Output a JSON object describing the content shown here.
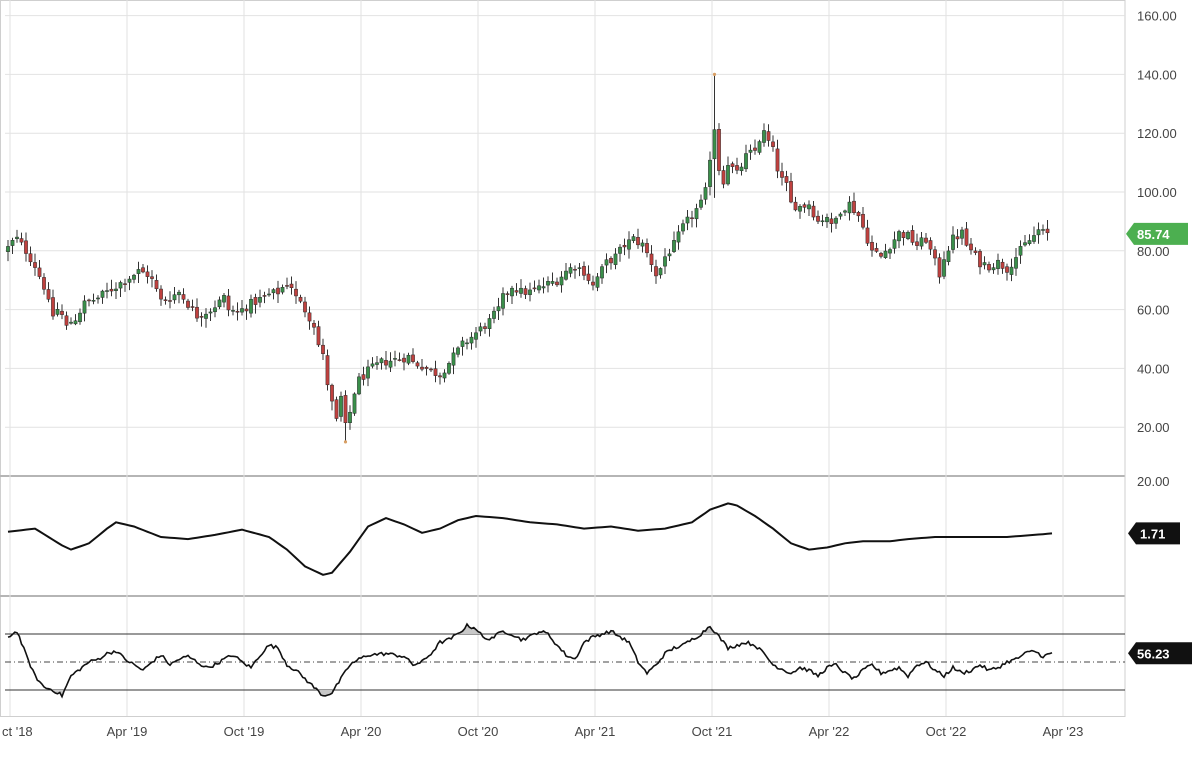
{
  "chart_data": [
    {
      "type": "candlestick",
      "panel": "price",
      "y_ticks": [
        "20.00",
        "40.00",
        "60.00",
        "80.00",
        "100.00",
        "120.00",
        "140.00",
        "160.00"
      ],
      "ylim": [
        0,
        163
      ],
      "x_ticks": [
        "ct '18",
        "Apr '19",
        "Oct '19",
        "Apr '20",
        "Oct '20",
        "Apr '21",
        "Oct '21",
        "Apr '22",
        "Oct '22",
        "Apr '23"
      ],
      "last_value_label": "85.74",
      "colors": {
        "up": "#3a8f4a",
        "down": "#c0413f",
        "badge": "#4caf50"
      },
      "grid": true,
      "x_axis": "weekly time, Oct 2018 – Aug 2023 (index 0 = first visible week)",
      "x_tick_week": [
        0,
        26,
        52,
        78,
        104,
        130,
        156,
        182,
        208,
        234
      ],
      "close_key_points": [
        [
          0,
          81
        ],
        [
          1,
          83
        ],
        [
          2,
          84
        ],
        [
          4,
          80
        ],
        [
          6,
          75
        ],
        [
          8,
          68
        ],
        [
          9,
          62
        ],
        [
          10,
          58
        ],
        [
          11,
          60
        ],
        [
          12,
          58
        ],
        [
          13,
          54
        ],
        [
          14,
          56
        ],
        [
          15,
          57
        ],
        [
          17,
          62
        ],
        [
          20,
          64
        ],
        [
          24,
          68
        ],
        [
          27,
          71
        ],
        [
          29,
          73
        ],
        [
          31,
          72
        ],
        [
          32,
          70
        ],
        [
          34,
          63
        ],
        [
          36,
          64
        ],
        [
          38,
          66
        ],
        [
          40,
          62
        ],
        [
          42,
          58
        ],
        [
          45,
          60
        ],
        [
          48,
          64
        ],
        [
          49,
          60
        ],
        [
          51,
          59
        ],
        [
          54,
          62
        ],
        [
          58,
          65
        ],
        [
          60,
          66
        ],
        [
          62,
          69
        ],
        [
          63,
          68
        ],
        [
          64,
          64
        ],
        [
          66,
          60
        ],
        [
          68,
          55
        ],
        [
          69,
          48
        ],
        [
          70,
          44
        ],
        [
          71,
          35
        ],
        [
          72,
          28
        ],
        [
          73,
          22
        ],
        [
          74,
          30
        ],
        [
          75,
          20
        ],
        [
          76,
          25
        ],
        [
          77,
          32
        ],
        [
          78,
          36
        ],
        [
          80,
          39
        ],
        [
          83,
          42
        ],
        [
          86,
          43
        ],
        [
          89,
          44
        ],
        [
          90,
          42
        ],
        [
          92,
          41
        ],
        [
          94,
          39
        ],
        [
          96,
          38
        ],
        [
          97,
          40
        ],
        [
          99,
          44
        ],
        [
          101,
          48
        ],
        [
          104,
          52
        ],
        [
          107,
          56
        ],
        [
          109,
          60
        ],
        [
          110,
          64
        ],
        [
          112,
          68
        ],
        [
          114,
          66
        ],
        [
          116,
          66
        ],
        [
          119,
          68
        ],
        [
          122,
          70
        ],
        [
          124,
          73
        ],
        [
          126,
          75
        ],
        [
          128,
          73
        ],
        [
          130,
          68
        ],
        [
          131,
          71
        ],
        [
          133,
          76
        ],
        [
          135,
          78
        ],
        [
          137,
          82
        ],
        [
          139,
          84
        ],
        [
          141,
          82
        ],
        [
          143,
          76
        ],
        [
          144,
          72
        ],
        [
          145,
          74
        ],
        [
          146,
          78
        ],
        [
          148,
          82
        ],
        [
          150,
          88
        ],
        [
          152,
          92
        ],
        [
          154,
          96
        ],
        [
          155,
          100
        ],
        [
          156,
          112
        ],
        [
          157,
          122
        ],
        [
          158,
          108
        ],
        [
          159,
          104
        ],
        [
          160,
          110
        ],
        [
          162,
          106
        ],
        [
          164,
          112
        ],
        [
          166,
          114
        ],
        [
          167,
          118
        ],
        [
          168,
          120
        ],
        [
          170,
          114
        ],
        [
          171,
          108
        ],
        [
          172,
          104
        ],
        [
          173,
          102
        ],
        [
          174,
          96
        ],
        [
          176,
          95
        ],
        [
          178,
          96
        ],
        [
          180,
          90
        ],
        [
          182,
          92
        ],
        [
          183,
          88
        ],
        [
          185,
          94
        ],
        [
          187,
          96
        ],
        [
          189,
          92
        ],
        [
          191,
          84
        ],
        [
          192,
          80
        ],
        [
          194,
          78
        ],
        [
          196,
          82
        ],
        [
          198,
          86
        ],
        [
          200,
          85
        ],
        [
          202,
          82
        ],
        [
          204,
          84
        ],
        [
          206,
          76
        ],
        [
          207,
          72
        ],
        [
          208,
          78
        ],
        [
          210,
          84
        ],
        [
          212,
          86
        ],
        [
          213,
          82
        ],
        [
          214,
          80
        ],
        [
          216,
          76
        ],
        [
          218,
          75
        ],
        [
          220,
          76
        ],
        [
          222,
          74
        ],
        [
          224,
          78
        ],
        [
          226,
          82
        ],
        [
          228,
          85
        ],
        [
          229,
          87
        ],
        [
          230,
          86
        ],
        [
          231,
          85.74
        ]
      ],
      "spikes": [
        {
          "week": 157,
          "high": 140,
          "low": 98
        },
        {
          "week": 75,
          "high": 30,
          "low": 15
        }
      ]
    },
    {
      "type": "line",
      "panel": "oscillator-1",
      "y_tick": "20.00",
      "last_value_label": "1.71",
      "color": "#111111",
      "key_points": [
        [
          0,
          2.5
        ],
        [
          6,
          4
        ],
        [
          12,
          -4
        ],
        [
          14,
          -6
        ],
        [
          18,
          -3
        ],
        [
          22,
          4
        ],
        [
          24,
          7
        ],
        [
          28,
          5
        ],
        [
          34,
          0
        ],
        [
          40,
          -1
        ],
        [
          46,
          1
        ],
        [
          52,
          3.5
        ],
        [
          58,
          0
        ],
        [
          62,
          -6
        ],
        [
          66,
          -14
        ],
        [
          70,
          -18
        ],
        [
          72,
          -17
        ],
        [
          76,
          -7
        ],
        [
          80,
          5
        ],
        [
          84,
          9
        ],
        [
          88,
          6
        ],
        [
          92,
          2
        ],
        [
          96,
          4
        ],
        [
          100,
          8
        ],
        [
          104,
          10
        ],
        [
          110,
          9
        ],
        [
          116,
          7
        ],
        [
          122,
          6
        ],
        [
          128,
          4
        ],
        [
          134,
          5
        ],
        [
          140,
          3
        ],
        [
          146,
          4
        ],
        [
          152,
          7
        ],
        [
          156,
          13
        ],
        [
          160,
          16
        ],
        [
          162,
          15
        ],
        [
          166,
          10
        ],
        [
          170,
          4
        ],
        [
          174,
          -3
        ],
        [
          178,
          -6
        ],
        [
          182,
          -5
        ],
        [
          186,
          -3
        ],
        [
          190,
          -2
        ],
        [
          196,
          -2
        ],
        [
          200,
          -1
        ],
        [
          206,
          0
        ],
        [
          212,
          0
        ],
        [
          218,
          0
        ],
        [
          222,
          0
        ],
        [
          228,
          1
        ],
        [
          232,
          1.71
        ]
      ]
    },
    {
      "type": "line",
      "panel": "oscillator-2",
      "last_value_label": "56.23",
      "upper_band": 70,
      "lower_band": 30,
      "mid_line": 50,
      "color": "#111111",
      "fill_color": "#c8c8c8",
      "key_points": [
        [
          0,
          68
        ],
        [
          2,
          72
        ],
        [
          4,
          55
        ],
        [
          6,
          40
        ],
        [
          8,
          32
        ],
        [
          10,
          30
        ],
        [
          12,
          26
        ],
        [
          14,
          40
        ],
        [
          16,
          45
        ],
        [
          18,
          50
        ],
        [
          20,
          52
        ],
        [
          22,
          56
        ],
        [
          24,
          58
        ],
        [
          26,
          52
        ],
        [
          28,
          48
        ],
        [
          30,
          44
        ],
        [
          32,
          50
        ],
        [
          34,
          55
        ],
        [
          36,
          48
        ],
        [
          38,
          52
        ],
        [
          40,
          54
        ],
        [
          42,
          50
        ],
        [
          44,
          46
        ],
        [
          46,
          48
        ],
        [
          48,
          52
        ],
        [
          50,
          55
        ],
        [
          52,
          50
        ],
        [
          54,
          46
        ],
        [
          56,
          55
        ],
        [
          58,
          62
        ],
        [
          60,
          60
        ],
        [
          62,
          48
        ],
        [
          64,
          44
        ],
        [
          66,
          38
        ],
        [
          68,
          32
        ],
        [
          70,
          26
        ],
        [
          72,
          28
        ],
        [
          74,
          38
        ],
        [
          76,
          48
        ],
        [
          78,
          52
        ],
        [
          80,
          55
        ],
        [
          84,
          56
        ],
        [
          88,
          54
        ],
        [
          90,
          48
        ],
        [
          92,
          50
        ],
        [
          94,
          56
        ],
        [
          96,
          64
        ],
        [
          98,
          66
        ],
        [
          100,
          70
        ],
        [
          102,
          76
        ],
        [
          104,
          74
        ],
        [
          106,
          66
        ],
        [
          108,
          68
        ],
        [
          110,
          72
        ],
        [
          112,
          70
        ],
        [
          114,
          66
        ],
        [
          116,
          68
        ],
        [
          118,
          72
        ],
        [
          120,
          70
        ],
        [
          122,
          62
        ],
        [
          124,
          55
        ],
        [
          126,
          52
        ],
        [
          128,
          64
        ],
        [
          130,
          68
        ],
        [
          132,
          70
        ],
        [
          134,
          72
        ],
        [
          136,
          68
        ],
        [
          138,
          64
        ],
        [
          140,
          50
        ],
        [
          142,
          42
        ],
        [
          144,
          48
        ],
        [
          146,
          56
        ],
        [
          148,
          60
        ],
        [
          150,
          62
        ],
        [
          152,
          66
        ],
        [
          154,
          70
        ],
        [
          156,
          76
        ],
        [
          158,
          68
        ],
        [
          160,
          60
        ],
        [
          162,
          62
        ],
        [
          164,
          64
        ],
        [
          166,
          62
        ],
        [
          168,
          56
        ],
        [
          170,
          48
        ],
        [
          172,
          45
        ],
        [
          174,
          42
        ],
        [
          176,
          46
        ],
        [
          178,
          44
        ],
        [
          180,
          40
        ],
        [
          182,
          46
        ],
        [
          184,
          48
        ],
        [
          186,
          42
        ],
        [
          188,
          38
        ],
        [
          190,
          44
        ],
        [
          192,
          48
        ],
        [
          194,
          42
        ],
        [
          196,
          44
        ],
        [
          198,
          46
        ],
        [
          200,
          40
        ],
        [
          202,
          48
        ],
        [
          204,
          50
        ],
        [
          206,
          44
        ],
        [
          208,
          40
        ],
        [
          210,
          46
        ],
        [
          212,
          42
        ],
        [
          214,
          44
        ],
        [
          216,
          48
        ],
        [
          218,
          44
        ],
        [
          220,
          46
        ],
        [
          222,
          50
        ],
        [
          224,
          52
        ],
        [
          226,
          56
        ],
        [
          228,
          58
        ],
        [
          230,
          54
        ],
        [
          232,
          56.23
        ]
      ]
    }
  ]
}
